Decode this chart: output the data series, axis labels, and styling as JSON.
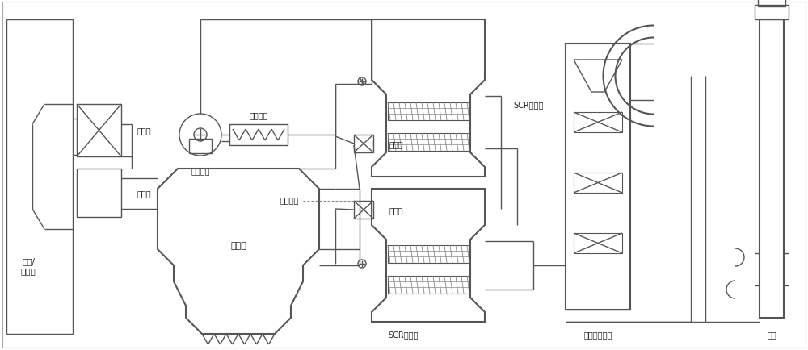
{
  "bg_color": "#ffffff",
  "lc": "#555555",
  "lw": 1.0,
  "lw2": 1.5,
  "labels": {
    "boiler": "锅炉/\n燃烧炉",
    "economizer": "省煤器",
    "air_preheater": "空预器",
    "fan": "再生风机",
    "heater": "电加热器",
    "dust": "除尘器",
    "ammonia": "氨混机构",
    "damper1": "挡板阀",
    "damper2": "挡板阀",
    "scr1": "SCR反应器",
    "scr2": "SCR反应器",
    "wet_desulfur": "湿法脱硫装置",
    "chimney": "烟囱"
  },
  "figsize": [
    10.0,
    4.35
  ],
  "dpi": 100
}
